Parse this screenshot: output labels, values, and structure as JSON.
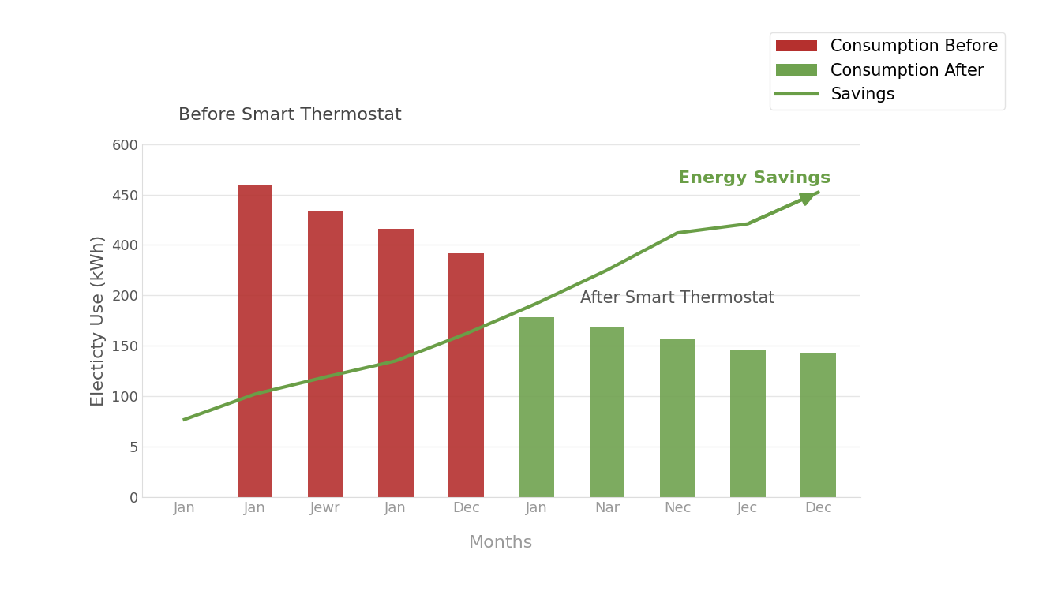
{
  "chart_data": {
    "type": "bar",
    "annotations": [
      "Before Smart Thermostat",
      "After Smart Thermostat",
      "Energy Savings"
    ],
    "x_label": "Months",
    "y_label": "Electicty Use (kWh)",
    "categories": [
      "Jan",
      "Jan",
      "Jewr",
      "Jan",
      "Dec",
      "Jan",
      "Nar",
      "Nec",
      "Jec",
      "Dec"
    ],
    "series": [
      {
        "name": "Consumption Before",
        "type": "bar",
        "color": "#b5302e",
        "values": [
          null,
          480,
          433,
          416,
          367,
          null,
          null,
          null,
          null,
          null
        ]
      },
      {
        "name": "Consumption After",
        "type": "bar",
        "color": "#6fa24f",
        "values": [
          null,
          null,
          null,
          null,
          null,
          178,
          169,
          157,
          146,
          142
        ]
      },
      {
        "name": "Savings",
        "type": "line",
        "color": "#6a9e47",
        "line_style": "solid",
        "values": [
          56,
          102,
          119,
          135,
          162,
          192,
          300,
          412,
          421,
          457
        ]
      }
    ],
    "ylim": [
      0,
      600
    ],
    "yticks": [
      0,
      5,
      100,
      150,
      200,
      400,
      450,
      600
    ],
    "grid": true,
    "legend": "upper right"
  }
}
